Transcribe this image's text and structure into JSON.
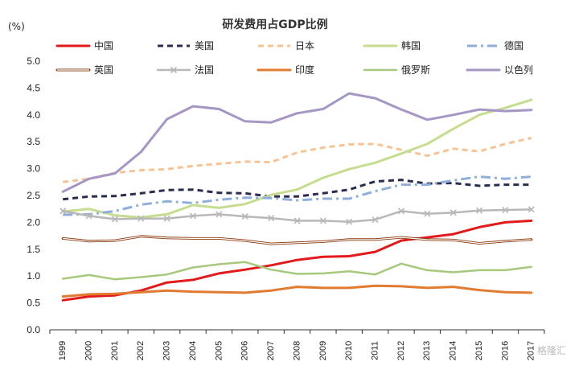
{
  "watermark": "格隆汇",
  "chart_data": {
    "type": "line",
    "title": "研发费用占GDP比例",
    "unit_label": "(%)",
    "ylim": [
      0,
      5
    ],
    "yticks": [
      "0.0",
      "0.5",
      "1.0",
      "1.5",
      "2.0",
      "2.5",
      "3.0",
      "3.5",
      "4.0",
      "4.5",
      "5.0"
    ],
    "x": [
      "1999",
      "2000",
      "2001",
      "2002",
      "2003",
      "2004",
      "2005",
      "2006",
      "2007",
      "2008",
      "2009",
      "2010",
      "2011",
      "2012",
      "2013",
      "2014",
      "2015",
      "2016",
      "2017"
    ],
    "legend_position": "top",
    "grid": false,
    "series": [
      {
        "name": "中国",
        "color": "#e31a1c",
        "style": "solid-thick",
        "values": [
          0.55,
          0.62,
          0.64,
          0.73,
          0.88,
          0.93,
          1.05,
          1.12,
          1.2,
          1.3,
          1.36,
          1.37,
          1.45,
          1.66,
          1.72,
          1.78,
          1.91,
          2.0,
          2.03
        ]
      },
      {
        "name": "美国",
        "color": "#2b2d50",
        "style": "dashed",
        "values": [
          2.43,
          2.48,
          2.49,
          2.54,
          2.6,
          2.61,
          2.55,
          2.54,
          2.48,
          2.48,
          2.54,
          2.61,
          2.76,
          2.79,
          2.72,
          2.73,
          2.68,
          2.7,
          2.7
        ]
      },
      {
        "name": "日本",
        "color": "#f8c393",
        "style": "dashed",
        "values": [
          2.75,
          2.81,
          2.92,
          2.97,
          2.99,
          3.05,
          3.09,
          3.13,
          3.12,
          3.3,
          3.39,
          3.45,
          3.46,
          3.35,
          3.24,
          3.37,
          3.32,
          3.46,
          3.57
        ]
      },
      {
        "name": "韩国",
        "color": "#c6dc8e",
        "style": "solid-thick",
        "values": [
          2.2,
          2.25,
          2.13,
          2.09,
          2.15,
          2.32,
          2.27,
          2.34,
          2.51,
          2.61,
          2.83,
          2.99,
          3.11,
          3.28,
          3.46,
          3.74,
          4.0,
          4.13,
          4.28
        ]
      },
      {
        "name": "德国",
        "color": "#8eaedb",
        "style": "dashdot",
        "values": [
          2.14,
          2.15,
          2.21,
          2.33,
          2.39,
          2.36,
          2.42,
          2.46,
          2.45,
          2.41,
          2.44,
          2.44,
          2.58,
          2.7,
          2.7,
          2.78,
          2.85,
          2.81,
          2.85
        ]
      },
      {
        "name": "英国",
        "color": "#8b3a10",
        "style": "double",
        "values": [
          1.7,
          1.65,
          1.66,
          1.74,
          1.71,
          1.7,
          1.7,
          1.66,
          1.6,
          1.62,
          1.64,
          1.68,
          1.68,
          1.72,
          1.68,
          1.67,
          1.61,
          1.65,
          1.68
        ]
      },
      {
        "name": "法国",
        "color": "#b8b8b8",
        "style": "cross",
        "values": [
          2.21,
          2.12,
          2.06,
          2.07,
          2.07,
          2.12,
          2.15,
          2.11,
          2.08,
          2.03,
          2.03,
          2.01,
          2.05,
          2.21,
          2.16,
          2.18,
          2.22,
          2.23,
          2.24
        ]
      },
      {
        "name": "印度",
        "color": "#e07b30",
        "style": "solid-thick",
        "values": [
          0.62,
          0.66,
          0.67,
          0.7,
          0.73,
          0.71,
          0.7,
          0.69,
          0.73,
          0.8,
          0.78,
          0.78,
          0.82,
          0.81,
          0.78,
          0.8,
          0.74,
          0.7,
          0.69
        ]
      },
      {
        "name": "俄罗斯",
        "color": "#a6c97c",
        "style": "solid",
        "values": [
          0.95,
          1.02,
          0.94,
          0.98,
          1.03,
          1.16,
          1.22,
          1.26,
          1.12,
          1.04,
          1.05,
          1.09,
          1.03,
          1.23,
          1.11,
          1.07,
          1.11,
          1.11,
          1.17
        ]
      },
      {
        "name": "以色列",
        "color": "#a596c6",
        "style": "solid-thick",
        "values": [
          2.57,
          2.81,
          2.91,
          3.31,
          3.92,
          4.16,
          4.11,
          3.88,
          3.86,
          4.03,
          4.11,
          4.4,
          4.31,
          4.1,
          3.91,
          4.0,
          4.1,
          4.07,
          4.09
        ]
      }
    ]
  }
}
